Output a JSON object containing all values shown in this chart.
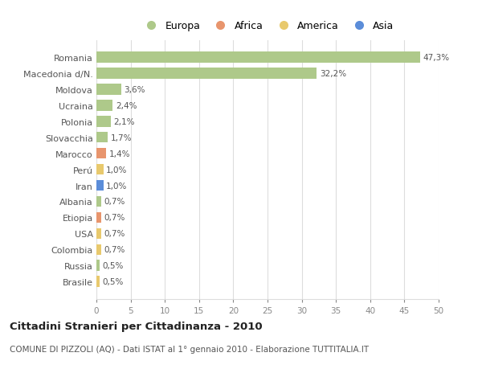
{
  "categories": [
    "Romania",
    "Macedonia d/N.",
    "Moldova",
    "Ucraina",
    "Polonia",
    "Slovacchia",
    "Marocco",
    "Perú",
    "Iran",
    "Albania",
    "Etiopia",
    "USA",
    "Colombia",
    "Russia",
    "Brasile"
  ],
  "values": [
    47.3,
    32.2,
    3.6,
    2.4,
    2.1,
    1.7,
    1.4,
    1.0,
    1.0,
    0.7,
    0.7,
    0.7,
    0.7,
    0.5,
    0.5
  ],
  "labels": [
    "47,3%",
    "32,2%",
    "3,6%",
    "2,4%",
    "2,1%",
    "1,7%",
    "1,4%",
    "1,0%",
    "1,0%",
    "0,7%",
    "0,7%",
    "0,7%",
    "0,7%",
    "0,5%",
    "0,5%"
  ],
  "colors": [
    "#aec98a",
    "#aec98a",
    "#aec98a",
    "#aec98a",
    "#aec98a",
    "#aec98a",
    "#e8956d",
    "#e8c96d",
    "#5b8dd9",
    "#aec98a",
    "#e8956d",
    "#e8c96d",
    "#e8c96d",
    "#aec98a",
    "#e8c96d"
  ],
  "legend_labels": [
    "Europa",
    "Africa",
    "America",
    "Asia"
  ],
  "legend_colors": [
    "#aec98a",
    "#e8956d",
    "#e8c96d",
    "#5b8dd9"
  ],
  "title": "Cittadini Stranieri per Cittadinanza - 2010",
  "subtitle": "COMUNE DI PIZZOLI (AQ) - Dati ISTAT al 1° gennaio 2010 - Elaborazione TUTTITALIA.IT",
  "xlim": [
    0,
    50
  ],
  "xticks": [
    0,
    5,
    10,
    15,
    20,
    25,
    30,
    35,
    40,
    45,
    50
  ],
  "background_color": "#ffffff",
  "grid_color": "#dddddd",
  "bar_height": 0.68,
  "label_fontsize": 7.5,
  "ytick_fontsize": 8.0,
  "xtick_fontsize": 7.5,
  "legend_fontsize": 9.0,
  "title_fontsize": 9.5,
  "subtitle_fontsize": 7.5
}
